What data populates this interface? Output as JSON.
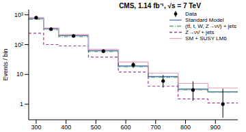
{
  "chart_data": {
    "type": "histogram",
    "title": "CMS, 1.14 fb⁻¹, √s = 7 TeV",
    "y_label": "Events / bin",
    "bins": [
      275,
      325,
      375,
      475,
      575,
      675,
      775,
      875,
      975
    ],
    "xlim": [
      275,
      975
    ],
    "xticks": [
      300,
      400,
      500,
      600,
      700,
      800,
      900
    ],
    "ylim": [
      0.3,
      1500
    ],
    "yticks": [
      1,
      10,
      {
        "value": 100,
        "label": "10²"
      },
      {
        "value": 1000,
        "label": "10³"
      }
    ],
    "log": "y",
    "grid": false,
    "legend": "upper right",
    "series": [
      {
        "name": "Data",
        "type": "scatter",
        "marker": "circle",
        "color": "#000000",
        "values": [
          800,
          330,
          195,
          60,
          21,
          6,
          3,
          1
        ],
        "errors": [
          [
            30,
            30
          ],
          [
            18,
            18
          ],
          [
            14,
            14
          ],
          [
            8,
            8
          ],
          [
            4.5,
            4.5
          ],
          [
            2.4,
            3.5
          ],
          [
            1.7,
            2.8
          ],
          [
            0.65,
            2.3
          ]
        ]
      },
      {
        "name": "Standard Model",
        "type": "step",
        "line_style": "solid",
        "color": "#4a6fb5",
        "values": [
          760,
          340,
          200,
          62,
          19,
          8.5,
          3.2,
          2.6
        ]
      },
      {
        "name": "(tt̄, t, W, Z→νν̄) + jets",
        "type": "step",
        "line_style": "dashdot",
        "color": "#5fa870",
        "values": [
          700,
          310,
          185,
          58,
          18,
          8,
          3,
          2.5
        ]
      },
      {
        "name": "Z→νν̄ + jets",
        "type": "step",
        "line_style": "dashed",
        "color": "#9b3a8c",
        "values": [
          240,
          100,
          90,
          38,
          12,
          4,
          1.5,
          1.1
        ]
      },
      {
        "name": "SM + SUSY LM6",
        "type": "step",
        "line_style": "solid",
        "color": "#e8a0b8",
        "values": [
          800,
          360,
          215,
          70,
          26,
          11,
          5,
          3.5
        ]
      }
    ]
  }
}
